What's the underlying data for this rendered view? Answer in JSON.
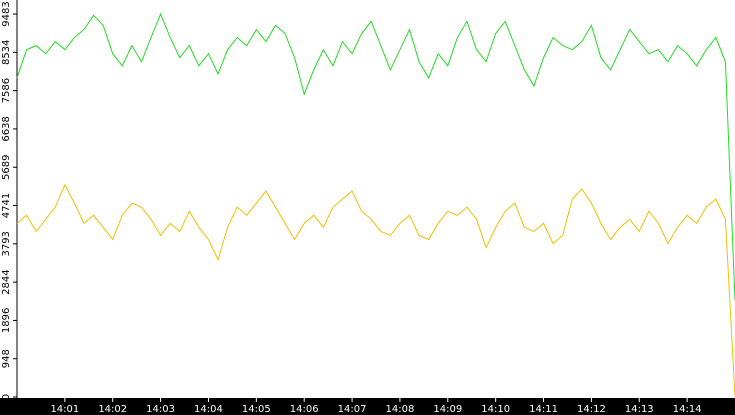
{
  "chart_data": {
    "type": "line",
    "x": [
      0,
      0.2,
      0.4,
      0.6,
      0.8,
      1,
      1.2,
      1.4,
      1.6,
      1.8,
      2,
      2.2,
      2.4,
      2.6,
      2.8,
      3,
      3.2,
      3.4,
      3.6,
      3.8,
      4,
      4.2,
      4.4,
      4.6,
      4.8,
      5,
      5.2,
      5.4,
      5.6,
      5.8,
      6,
      6.2,
      6.4,
      6.6,
      6.8,
      7,
      7.2,
      7.4,
      7.6,
      7.8,
      8,
      8.2,
      8.4,
      8.6,
      8.8,
      9,
      9.2,
      9.4,
      9.6,
      9.8,
      10,
      10.2,
      10.4,
      10.6,
      10.8,
      11,
      11.2,
      11.4,
      11.6,
      11.8,
      12,
      12.2,
      12.4,
      12.6,
      12.8,
      13,
      13.2,
      13.4,
      13.6,
      13.8,
      14,
      14.2,
      14.4,
      14.6,
      14.8,
      15
    ],
    "series": [
      {
        "color": "#22dd22",
        "values": [
          7900,
          8600,
          8700,
          8500,
          8800,
          8600,
          8900,
          9100,
          9450,
          9200,
          8500,
          8200,
          8700,
          8300,
          8900,
          9480,
          8900,
          8400,
          8700,
          8200,
          8500,
          8000,
          8600,
          8900,
          8700,
          9100,
          8800,
          9200,
          9000,
          8400,
          7500,
          8100,
          8600,
          8200,
          8800,
          8500,
          9000,
          9300,
          8700,
          8100,
          8600,
          9100,
          8300,
          7900,
          8500,
          8200,
          8900,
          9300,
          8600,
          8300,
          9000,
          9300,
          8700,
          8100,
          7700,
          8400,
          8900,
          8700,
          8600,
          8800,
          9200,
          8400,
          8100,
          8600,
          9100,
          8800,
          8500,
          8600,
          8300,
          8700,
          8500,
          8200,
          8600,
          8900,
          8300,
          2400
        ]
      },
      {
        "color": "#f0c000",
        "values": [
          4300,
          4500,
          4100,
          4400,
          4700,
          5250,
          4800,
          4300,
          4500,
          4200,
          3900,
          4500,
          4800,
          4700,
          4400,
          4000,
          4300,
          4100,
          4600,
          4200,
          3900,
          3400,
          4200,
          4700,
          4500,
          4800,
          5100,
          4700,
          4300,
          3900,
          4300,
          4500,
          4200,
          4700,
          4900,
          5100,
          4600,
          4400,
          4100,
          4000,
          4300,
          4500,
          4000,
          3900,
          4300,
          4600,
          4500,
          4700,
          4400,
          3700,
          4200,
          4600,
          4800,
          4200,
          4100,
          4300,
          3800,
          4000,
          4900,
          5150,
          4800,
          4300,
          3900,
          4200,
          4400,
          4100,
          4600,
          4300,
          3800,
          4200,
          4500,
          4300,
          4700,
          4900,
          4400,
          0
        ]
      }
    ],
    "xlim": [
      0,
      15
    ],
    "xticks": [
      {
        "value": 1,
        "label": "14:01"
      },
      {
        "value": 2,
        "label": "14:02"
      },
      {
        "value": 3,
        "label": "14:03"
      },
      {
        "value": 4,
        "label": "14:04"
      },
      {
        "value": 5,
        "label": "14:05"
      },
      {
        "value": 6,
        "label": "14:06"
      },
      {
        "value": 7,
        "label": "14:07"
      },
      {
        "value": 8,
        "label": "14:08"
      },
      {
        "value": 9,
        "label": "14:09"
      },
      {
        "value": 10,
        "label": "14:10"
      },
      {
        "value": 11,
        "label": "14:11"
      },
      {
        "value": 12,
        "label": "14:12"
      },
      {
        "value": 13,
        "label": "14:13"
      },
      {
        "value": 14,
        "label": "14:14"
      }
    ],
    "ylim": [
      0,
      9483
    ],
    "yticks": [
      0,
      948,
      1896,
      2844,
      3793,
      4741,
      5689,
      6638,
      7586,
      8534,
      9483
    ]
  }
}
